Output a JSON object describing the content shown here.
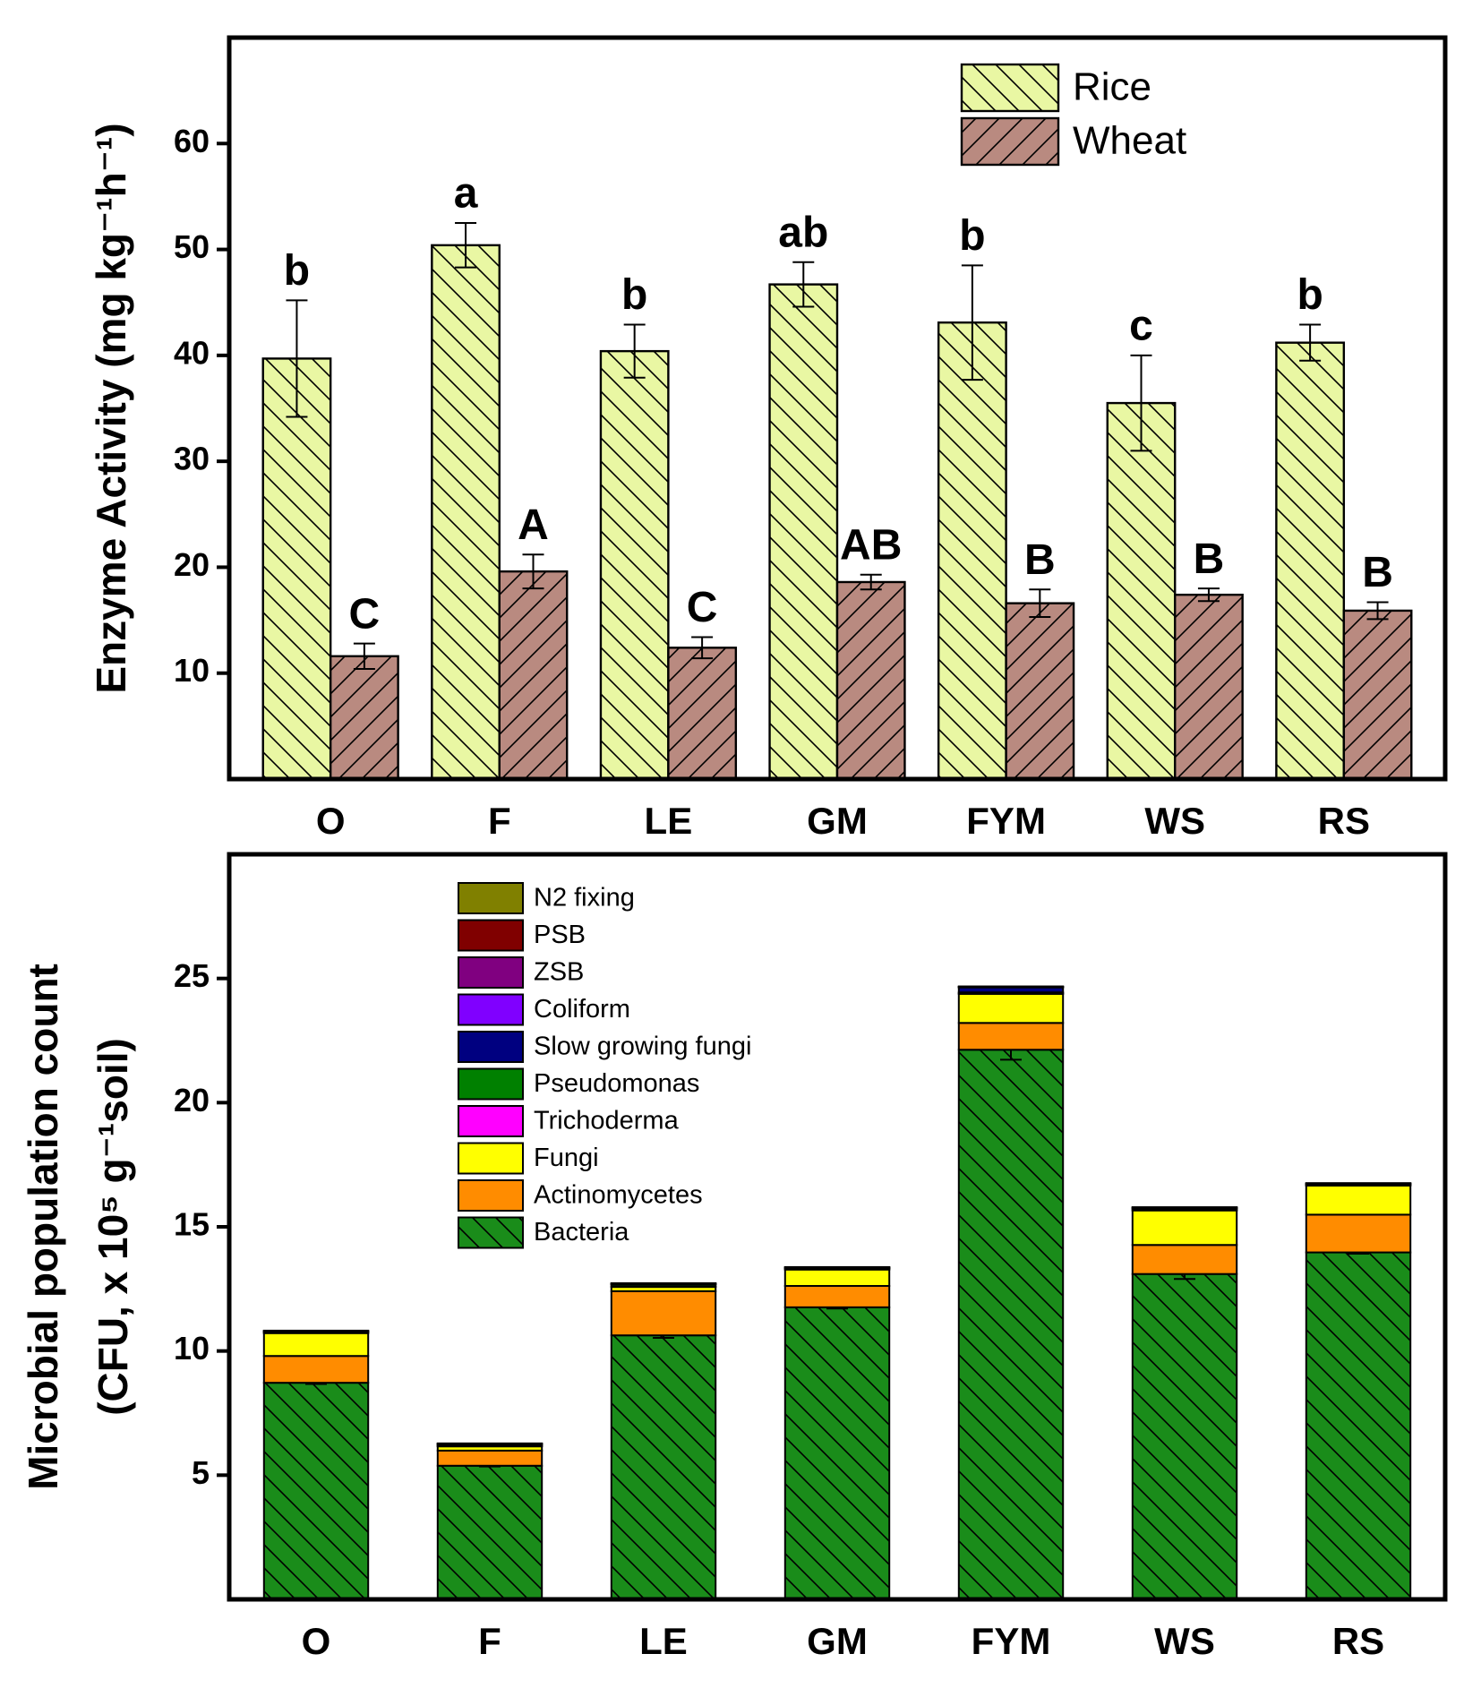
{
  "chart_data": [
    {
      "type": "bar",
      "ylabel": "Enzyme Activity (mg kg⁻¹h⁻¹)",
      "categories": [
        "O",
        "F",
        "LE",
        "GM",
        "FYM",
        "WS",
        "RS"
      ],
      "ylim": [
        0,
        70
      ],
      "yticks": [
        10,
        20,
        30,
        40,
        50,
        60
      ],
      "legend": "upper right",
      "series": [
        {
          "name": "Rice",
          "color": "#e9f7a3",
          "hatch": "back",
          "values": [
            39.7,
            50.4,
            40.4,
            46.7,
            43.1,
            35.5,
            41.2
          ],
          "errors": [
            5.5,
            2.1,
            2.5,
            2.1,
            5.4,
            4.5,
            1.7
          ],
          "letters": [
            "b",
            "a",
            "b",
            "ab",
            "b",
            "c",
            "b"
          ]
        },
        {
          "name": "Wheat",
          "color": "#b98a80",
          "hatch": "fwd",
          "values": [
            11.6,
            19.6,
            12.4,
            18.6,
            16.6,
            17.4,
            15.9
          ],
          "errors": [
            1.2,
            1.6,
            1.0,
            0.7,
            1.3,
            0.6,
            0.8
          ],
          "letters": [
            "C",
            "A",
            "C",
            "AB",
            "B",
            "B",
            "B"
          ]
        }
      ]
    },
    {
      "type": "stacked_bar",
      "ylabel": [
        "Microbial population count",
        "(CFU, x 10⁵ g⁻¹soil)"
      ],
      "categories": [
        "O",
        "F",
        "LE",
        "GM",
        "FYM",
        "WS",
        "RS"
      ],
      "ylim": [
        0,
        30
      ],
      "yticks": [
        5,
        10,
        15,
        20,
        25
      ],
      "legend": "upper center",
      "series": [
        {
          "name": "Bacteria",
          "color": "#1a8c1a",
          "hatch": "back",
          "values": [
            8.72,
            5.38,
            10.63,
            11.76,
            22.13,
            13.1,
            13.97
          ],
          "errors": [
            0.05,
            0.03,
            0.1,
            0.05,
            0.4,
            0.2,
            0.05
          ]
        },
        {
          "name": "Actinomycetes",
          "color": "#ff8c00",
          "values": [
            1.08,
            0.61,
            1.78,
            0.86,
            1.08,
            1.17,
            1.52
          ]
        },
        {
          "name": "Fungi",
          "color": "#ffff00",
          "values": [
            0.92,
            0.17,
            0.17,
            0.66,
            1.17,
            1.39,
            1.17
          ]
        },
        {
          "name": "Trichoderma",
          "color": "#ff00ff",
          "values": [
            0.01,
            0.01,
            0.01,
            0.01,
            0.02,
            0.01,
            0.01
          ]
        },
        {
          "name": "Pseudomonas",
          "color": "#008000",
          "values": [
            0.03,
            0.05,
            0.08,
            0.03,
            0.04,
            0.05,
            0.03
          ]
        },
        {
          "name": "Slow growing fungi",
          "color": "#000080",
          "values": [
            0.02,
            0.02,
            0.02,
            0.02,
            0.2,
            0.03,
            0.02
          ]
        },
        {
          "name": "Coliform",
          "color": "#8000ff",
          "values": [
            0.01,
            0.01,
            0.01,
            0.01,
            0.01,
            0.01,
            0.01
          ]
        },
        {
          "name": "ZSB",
          "color": "#800080",
          "values": [
            0.01,
            0.01,
            0.01,
            0.01,
            0.01,
            0.01,
            0.01
          ]
        },
        {
          "name": "PSB",
          "color": "#800000",
          "values": [
            0.01,
            0.01,
            0.01,
            0.01,
            0.01,
            0.01,
            0.01
          ]
        },
        {
          "name": "N2 fixing",
          "color": "#808000",
          "values": [
            0.01,
            0.01,
            0.01,
            0.01,
            0.01,
            0.01,
            0.01
          ]
        }
      ]
    }
  ]
}
